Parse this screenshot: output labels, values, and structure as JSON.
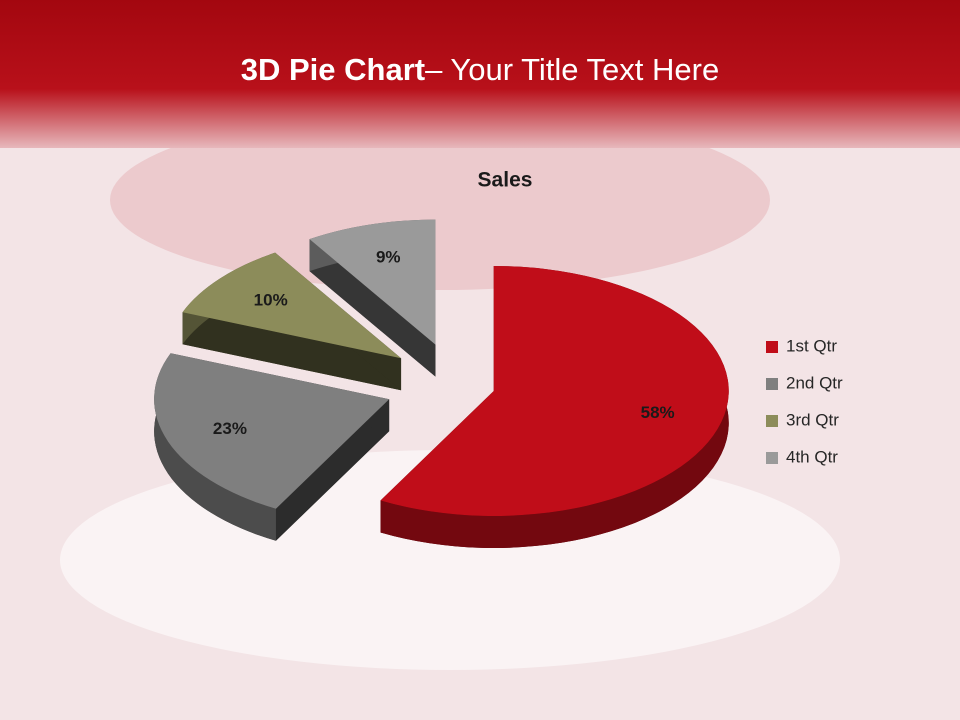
{
  "slide": {
    "title_bold": "3D Pie Chart",
    "title_rest": "– Your Title Text Here"
  },
  "chart_data": {
    "type": "pie",
    "title": "Sales",
    "categories": [
      "1st Qtr",
      "2nd Qtr",
      "3rd Qtr",
      "4th Qtr"
    ],
    "values": [
      58,
      23,
      10,
      9
    ],
    "value_labels": [
      "58%",
      "23%",
      "10%",
      "9%"
    ],
    "colors": [
      "#c00d19",
      "#7f7f7f",
      "#8c8c5a",
      "#9a9a9a"
    ],
    "legend": "right"
  }
}
